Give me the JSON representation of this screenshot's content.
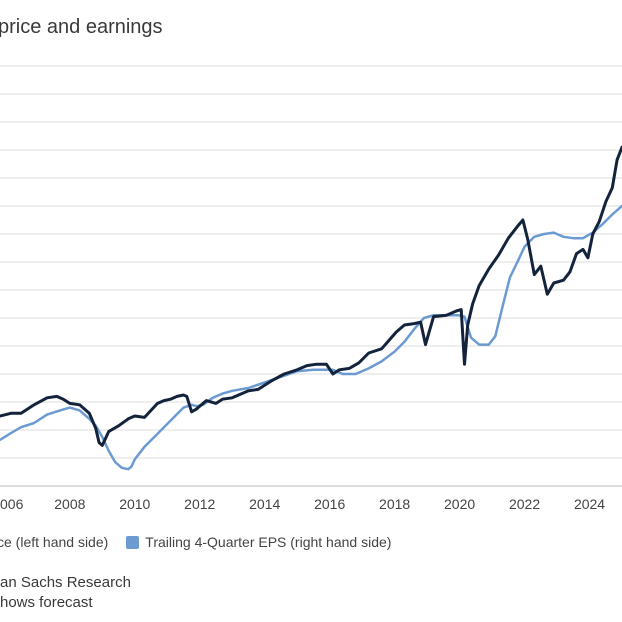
{
  "chart_data": {
    "type": "line",
    "title": "price and earnings",
    "xlabel": "",
    "ylabel": "",
    "grid": true,
    "legend_placement": "bottom-left",
    "x_ticks": [
      "006",
      "2008",
      "2010",
      "2012",
      "2014",
      "2016",
      "2018",
      "2020",
      "2022",
      "2024"
    ],
    "x_tick_values": [
      2006,
      2008,
      2010,
      2012,
      2014,
      2016,
      2018,
      2020,
      2022,
      2024
    ],
    "xlim": [
      2005.85,
      2025.0
    ],
    "ylim": [
      0,
      15
    ],
    "series": [
      {
        "name": "ce (left hand side)",
        "color": "#14233c",
        "x": [
          2005.85,
          2006.2,
          2006.5,
          2006.9,
          2007.3,
          2007.6,
          2007.8,
          2008.0,
          2008.3,
          2008.6,
          2008.8,
          2008.9,
          2009.0,
          2009.2,
          2009.5,
          2009.8,
          2010.0,
          2010.3,
          2010.5,
          2010.7,
          2010.9,
          2011.1,
          2011.3,
          2011.5,
          2011.6,
          2011.75,
          2011.9,
          2012.2,
          2012.5,
          2012.7,
          2013.0,
          2013.5,
          2013.8,
          2014.2,
          2014.6,
          2015.0,
          2015.3,
          2015.6,
          2015.9,
          2016.1,
          2016.3,
          2016.6,
          2016.9,
          2017.2,
          2017.6,
          2017.9,
          2018.05,
          2018.3,
          2018.6,
          2018.8,
          2018.95,
          2019.2,
          2019.6,
          2019.9,
          2020.05,
          2020.15,
          2020.25,
          2020.4,
          2020.6,
          2020.9,
          2021.2,
          2021.5,
          2021.8,
          2021.95,
          2022.1,
          2022.3,
          2022.5,
          2022.7,
          2022.9,
          2023.2,
          2023.4,
          2023.6,
          2023.8,
          2023.95,
          2024.1,
          2024.3,
          2024.5,
          2024.7,
          2024.85,
          2025.0
        ],
        "y": [
          2.5,
          2.6,
          2.6,
          2.9,
          3.15,
          3.2,
          3.1,
          2.95,
          2.9,
          2.6,
          2.05,
          1.55,
          1.45,
          1.95,
          2.15,
          2.4,
          2.5,
          2.45,
          2.7,
          2.95,
          3.05,
          3.1,
          3.2,
          3.25,
          3.2,
          2.65,
          2.75,
          3.05,
          2.95,
          3.1,
          3.15,
          3.4,
          3.45,
          3.75,
          4.0,
          4.15,
          4.3,
          4.35,
          4.35,
          4.0,
          4.15,
          4.2,
          4.4,
          4.75,
          4.9,
          5.3,
          5.5,
          5.75,
          5.8,
          5.85,
          5.05,
          6.05,
          6.1,
          6.25,
          6.3,
          4.35,
          5.75,
          6.5,
          7.15,
          7.75,
          8.25,
          8.85,
          9.3,
          9.5,
          8.8,
          7.55,
          7.85,
          6.85,
          7.25,
          7.35,
          7.65,
          8.3,
          8.45,
          8.15,
          9.0,
          9.45,
          10.15,
          10.65,
          11.65,
          12.1
        ]
      },
      {
        "name": "Trailing 4-Quarter EPS (right hand side)",
        "color": "#6b9bd1",
        "x": [
          2005.85,
          2006.2,
          2006.5,
          2006.9,
          2007.3,
          2007.7,
          2008.0,
          2008.3,
          2008.6,
          2008.8,
          2009.0,
          2009.2,
          2009.4,
          2009.6,
          2009.8,
          2009.9,
          2010.0,
          2010.3,
          2010.6,
          2010.9,
          2011.2,
          2011.5,
          2011.75,
          2011.9,
          2012.1,
          2012.4,
          2012.7,
          2013.0,
          2013.5,
          2014.0,
          2014.5,
          2015.0,
          2015.5,
          2015.8,
          2016.1,
          2016.4,
          2016.8,
          2017.2,
          2017.6,
          2018.0,
          2018.3,
          2018.6,
          2018.9,
          2019.2,
          2019.6,
          2019.95,
          2020.15,
          2020.35,
          2020.6,
          2020.9,
          2021.1,
          2021.3,
          2021.55,
          2021.8,
          2022.0,
          2022.3,
          2022.6,
          2022.9,
          2023.2,
          2023.5,
          2023.8,
          2024.1,
          2024.4,
          2024.7,
          2025.0
        ],
        "y": [
          1.65,
          1.9,
          2.1,
          2.25,
          2.55,
          2.7,
          2.8,
          2.7,
          2.4,
          2.15,
          1.75,
          1.25,
          0.85,
          0.65,
          0.6,
          0.7,
          0.95,
          1.4,
          1.75,
          2.1,
          2.45,
          2.8,
          2.9,
          2.85,
          2.9,
          3.15,
          3.3,
          3.4,
          3.5,
          3.7,
          3.9,
          4.1,
          4.15,
          4.15,
          4.15,
          4.0,
          4.0,
          4.2,
          4.45,
          4.8,
          5.15,
          5.6,
          6.0,
          6.1,
          6.1,
          6.1,
          6.05,
          5.3,
          5.05,
          5.05,
          5.35,
          6.3,
          7.45,
          8.05,
          8.55,
          8.9,
          9.0,
          9.05,
          8.9,
          8.85,
          8.85,
          9.05,
          9.35,
          9.7,
          10.0
        ]
      }
    ]
  },
  "source_lines": [
    "an Sachs Research",
    "hows forecast"
  ]
}
